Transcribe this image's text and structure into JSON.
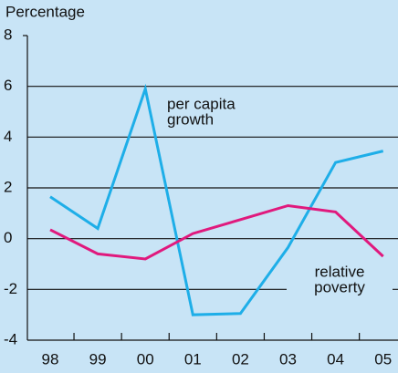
{
  "chart_data": {
    "type": "line",
    "y_axis_label": "Percentage",
    "categories": [
      "98",
      "99",
      "00",
      "01",
      "02",
      "03",
      "04",
      "05"
    ],
    "series": [
      {
        "name": "per capita growth",
        "color": "#1eaee8",
        "values": [
          1.65,
          0.4,
          5.9,
          -3.0,
          -2.95,
          -0.35,
          3.0,
          3.45
        ]
      },
      {
        "name": "relative poverty",
        "color": "#e0197d",
        "values": [
          0.35,
          -0.6,
          -0.8,
          0.2,
          0.75,
          1.3,
          1.05,
          -0.7
        ]
      }
    ],
    "annotations": [
      {
        "lines": [
          "per capita",
          "growth"
        ]
      },
      {
        "lines": [
          "relative",
          "poverty"
        ]
      }
    ],
    "ylim": [
      -4,
      8
    ],
    "yticks": [
      8,
      6,
      4,
      2,
      0,
      -2,
      -4
    ],
    "grid": true
  }
}
